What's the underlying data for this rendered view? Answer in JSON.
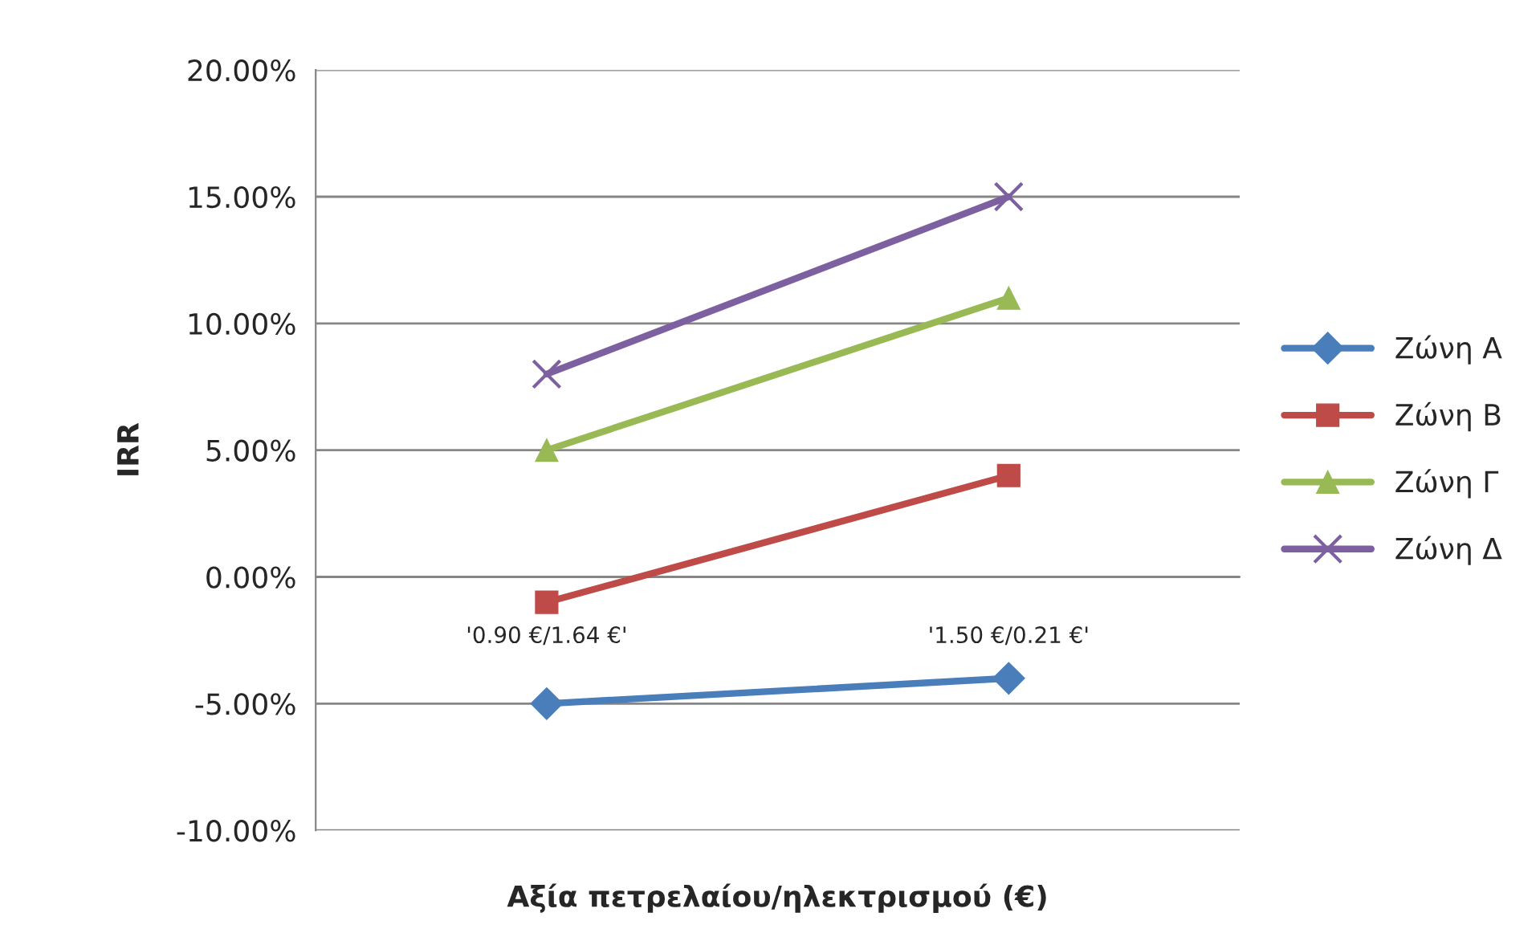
{
  "chart_data": {
    "type": "line",
    "xlabel": "Αξία πετρελαίου/ηλεκτρισμού (€)",
    "ylabel": "IRR",
    "categories": [
      "'0.90 €/1.64 €'",
      "'1.50 €/0.21 €'"
    ],
    "series": [
      {
        "name": "Ζώνη Α",
        "color": "#4a7ebb",
        "marker": "diamond",
        "values": [
          -5,
          -4
        ]
      },
      {
        "name": "Ζώνη Β",
        "color": "#be4b48",
        "marker": "square",
        "values": [
          -1,
          4
        ]
      },
      {
        "name": "Ζώνη Γ",
        "color": "#98b954",
        "marker": "triangle",
        "values": [
          5,
          11
        ]
      },
      {
        "name": "Ζώνη Δ",
        "color": "#7d60a0",
        "marker": "cross",
        "values": [
          8,
          15
        ]
      }
    ],
    "ylim": [
      -10,
      20
    ],
    "yticks": [
      {
        "value": -10,
        "label": "-10.00%"
      },
      {
        "value": -5,
        "label": "-5.00%"
      },
      {
        "value": 0,
        "label": "0.00%"
      },
      {
        "value": 5,
        "label": "5.00%"
      },
      {
        "value": 10,
        "label": "10.00%"
      },
      {
        "value": 15,
        "label": "15.00%"
      },
      {
        "value": 20,
        "label": "20.00%"
      }
    ],
    "grid": "y",
    "legend": "right",
    "line_style": "solid"
  }
}
